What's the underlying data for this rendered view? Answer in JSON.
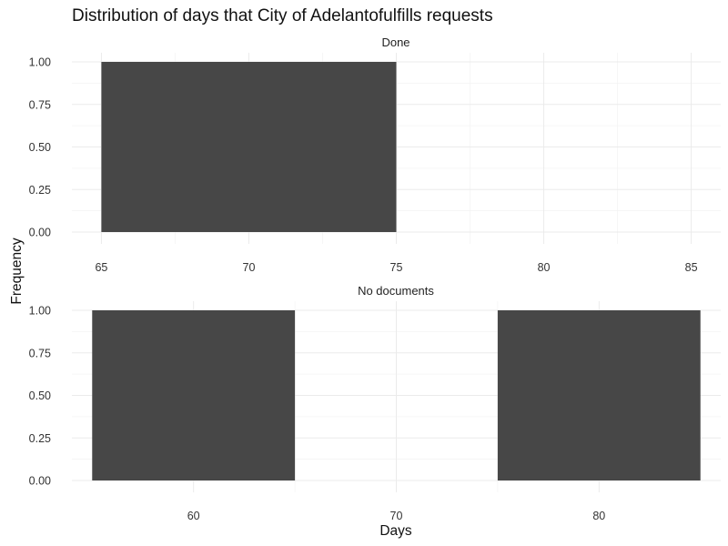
{
  "chart_data": {
    "type": "bar",
    "title": "Distribution of days that City of Adelantofulfills requests",
    "xlabel": "Days",
    "ylabel": "Frequency",
    "panels": [
      {
        "name": "Done",
        "xlim": [
          64,
          86
        ],
        "ylim": [
          0,
          1
        ],
        "xticks": [
          65,
          70,
          75,
          80,
          85
        ],
        "yticks": [
          0,
          0.25,
          0.5,
          0.75,
          1
        ],
        "ytick_labels": [
          "0.00",
          "0.25",
          "0.50",
          "0.75",
          "1.00"
        ],
        "bins": [
          {
            "x0": 65,
            "x1": 75,
            "count": 1
          }
        ]
      },
      {
        "name": "No documents",
        "xlim": [
          54,
          86
        ],
        "ylim": [
          0,
          1
        ],
        "xticks": [
          60,
          70,
          80
        ],
        "yticks": [
          0,
          0.25,
          0.5,
          0.75,
          1
        ],
        "ytick_labels": [
          "0.00",
          "0.25",
          "0.50",
          "0.75",
          "1.00"
        ],
        "bins": [
          {
            "x0": 55,
            "x1": 65,
            "count": 1
          },
          {
            "x0": 75,
            "x1": 85,
            "count": 1
          }
        ]
      }
    ],
    "grid": true,
    "legend": "none"
  }
}
